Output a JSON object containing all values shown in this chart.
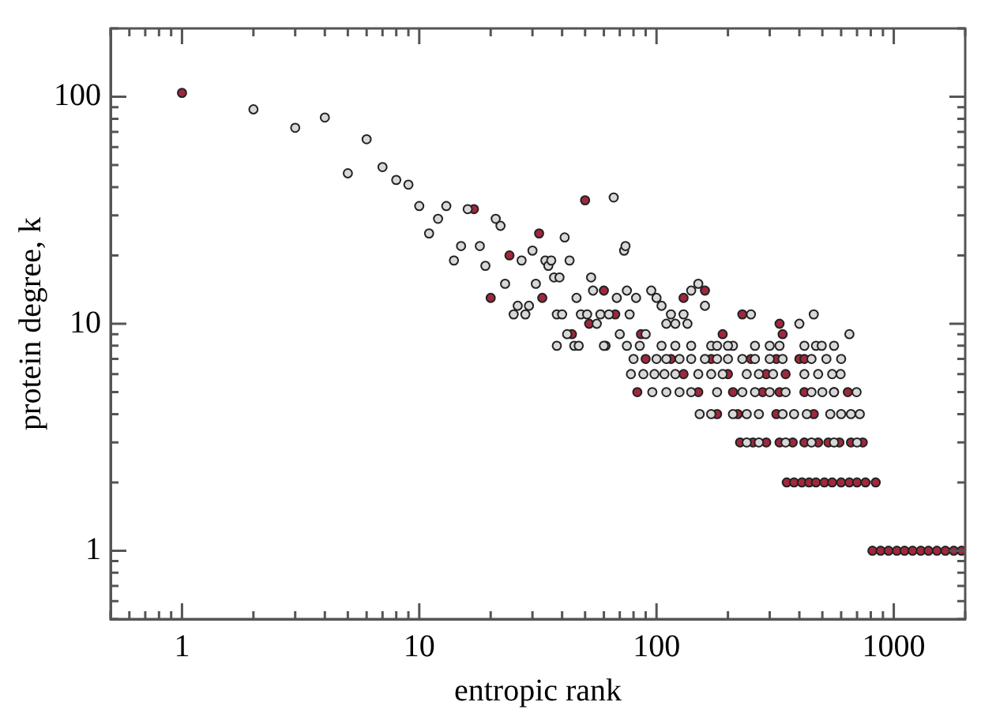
{
  "chart_data": {
    "type": "scatter",
    "xlabel": "entropic rank",
    "ylabel": "protein degree, k",
    "log": "xy",
    "grid": false,
    "legend": false,
    "marker": "circle",
    "xlim": [
      0.5,
      2000
    ],
    "ylim": [
      0.5,
      200
    ],
    "xticks": [
      {
        "value": 0.5,
        "label": null
      },
      {
        "value": 0.6,
        "label": null
      },
      {
        "value": 0.7,
        "label": null
      },
      {
        "value": 0.8,
        "label": null
      },
      {
        "value": 0.9,
        "label": null
      },
      1,
      {
        "value": 2,
        "label": null
      },
      {
        "value": 3,
        "label": null
      },
      {
        "value": 4,
        "label": null
      },
      {
        "value": 5,
        "label": null
      },
      {
        "value": 6,
        "label": null
      },
      {
        "value": 7,
        "label": null
      },
      {
        "value": 8,
        "label": null
      },
      {
        "value": 9,
        "label": null
      },
      10,
      {
        "value": 20,
        "label": null
      },
      {
        "value": 30,
        "label": null
      },
      {
        "value": 40,
        "label": null
      },
      {
        "value": 50,
        "label": null
      },
      {
        "value": 60,
        "label": null
      },
      {
        "value": 70,
        "label": null
      },
      {
        "value": 80,
        "label": null
      },
      {
        "value": 90,
        "label": null
      },
      100,
      {
        "value": 200,
        "label": null
      },
      {
        "value": 300,
        "label": null
      },
      {
        "value": 400,
        "label": null
      },
      {
        "value": 500,
        "label": null
      },
      {
        "value": 600,
        "label": null
      },
      {
        "value": 700,
        "label": null
      },
      {
        "value": 800,
        "label": null
      },
      {
        "value": 900,
        "label": null
      },
      1000,
      {
        "value": 2000,
        "label": null
      }
    ],
    "yticks": [
      {
        "value": 0.5,
        "label": null
      },
      {
        "value": 0.6,
        "label": null
      },
      {
        "value": 0.7,
        "label": null
      },
      {
        "value": 0.8,
        "label": null
      },
      {
        "value": 0.9,
        "label": null
      },
      1,
      {
        "value": 2,
        "label": null
      },
      {
        "value": 3,
        "label": null
      },
      {
        "value": 4,
        "label": null
      },
      {
        "value": 5,
        "label": null
      },
      {
        "value": 6,
        "label": null
      },
      {
        "value": 7,
        "label": null
      },
      {
        "value": 8,
        "label": null
      },
      {
        "value": 9,
        "label": null
      },
      10,
      {
        "value": 20,
        "label": null
      },
      {
        "value": 30,
        "label": null
      },
      {
        "value": 40,
        "label": null
      },
      {
        "value": 50,
        "label": null
      },
      {
        "value": 60,
        "label": null
      },
      {
        "value": 70,
        "label": null
      },
      {
        "value": 80,
        "label": null
      },
      {
        "value": 90,
        "label": null
      },
      100,
      {
        "value": 200,
        "label": null
      }
    ],
    "series": [
      {
        "color": "#d8d8d8",
        "x": [
          2,
          3,
          4,
          5,
          6,
          7,
          8,
          9,
          10,
          11,
          12,
          13,
          14,
          15,
          16,
          18,
          19,
          21,
          22,
          23,
          25,
          26,
          27,
          28,
          29,
          30,
          31,
          34,
          35,
          36,
          37,
          38,
          39,
          40,
          41,
          42,
          43,
          45,
          46,
          47,
          48,
          51,
          53,
          54,
          56,
          58,
          61,
          63,
          66,
          68,
          70,
          73,
          74,
          75,
          77,
          82,
          85,
          90,
          95,
          100,
          105,
          110,
          115,
          120,
          130,
          135,
          140,
          150,
          160,
          170,
          180,
          210,
          250,
          300,
          400,
          460,
          470,
          560,
          650,
          38,
          60,
          75,
          105,
          120,
          140,
          200,
          260,
          330,
          420,
          497,
          80,
          100,
          110,
          125,
          140,
          160,
          180,
          200,
          230,
          260,
          300,
          340,
          450,
          520,
          600,
          78,
          88,
          98,
          108,
          120,
          150,
          170,
          190,
          240,
          270,
          310,
          420,
          480,
          550,
          597,
          96,
          110,
          125,
          140,
          180,
          230,
          260,
          300,
          350,
          450,
          500,
          560,
          697,
          152,
          170,
          210,
          240,
          270,
          340,
          380,
          430,
          540,
          600,
          660,
          719,
          240,
          270,
          350,
          450,
          560,
          700
        ],
        "values": [
          88,
          73,
          81,
          46,
          65,
          49,
          43,
          41,
          33,
          25,
          29,
          33,
          19,
          22,
          32,
          22,
          18,
          29,
          27,
          15,
          11,
          12,
          19,
          11,
          12,
          21,
          15,
          19,
          18,
          19,
          16,
          11,
          16,
          11,
          24,
          9,
          19,
          8,
          13,
          8,
          11,
          11,
          16,
          14,
          10,
          11,
          8,
          11,
          36,
          13,
          9,
          21,
          22,
          14,
          11,
          13,
          8,
          9,
          14,
          13,
          12,
          10,
          11,
          10,
          11,
          10,
          14,
          15,
          12,
          8,
          8,
          8,
          11,
          8,
          10,
          11,
          8,
          8,
          9,
          8,
          8,
          8,
          8,
          8,
          8,
          8,
          8,
          8,
          8,
          8,
          7,
          7,
          7,
          7,
          7,
          7,
          7,
          7,
          7,
          7,
          7,
          7,
          7,
          7,
          7,
          6,
          6,
          6,
          6,
          6,
          6,
          6,
          6,
          6,
          6,
          6,
          6,
          6,
          6,
          6,
          5,
          5,
          5,
          5,
          5,
          5,
          5,
          5,
          5,
          5,
          5,
          5,
          5,
          4,
          4,
          4,
          4,
          4,
          4,
          4,
          4,
          4,
          4,
          4,
          4,
          3,
          3,
          3,
          3,
          3,
          3
        ]
      },
      {
        "color": "#a0283c",
        "x": [
          1,
          17,
          20,
          24,
          32,
          33,
          44,
          50,
          52,
          60,
          67,
          86,
          130,
          160,
          190,
          230,
          330,
          340,
          400,
          813,
          880,
          950,
          1030,
          1110,
          1200,
          1300,
          1400,
          1520,
          1650,
          1790,
          1930,
          354,
          380,
          410,
          440,
          470,
          510,
          550,
          600,
          650,
          700,
          760,
          839,
          225,
          255,
          290,
          330,
          375,
          420,
          480,
          530,
          590,
          660,
          740,
          83,
          150,
          210,
          280,
          330,
          420,
          560,
          640,
          90,
          115,
          170,
          250,
          320,
          420,
          130,
          200,
          290,
          350,
          180,
          220,
          320,
          460
        ],
        "values": [
          104,
          32,
          13,
          20,
          25,
          13,
          9,
          35,
          10,
          14,
          11,
          9,
          13,
          14,
          9,
          11,
          10,
          9,
          7,
          1,
          1,
          1,
          1,
          1,
          1,
          1,
          1,
          1,
          1,
          1,
          1,
          2,
          2,
          2,
          2,
          2,
          2,
          2,
          2,
          2,
          2,
          2,
          2,
          3,
          3,
          3,
          3,
          3,
          3,
          3,
          3,
          3,
          3,
          3,
          5,
          5,
          5,
          5,
          5,
          5,
          5,
          5,
          7,
          7,
          7,
          7,
          7,
          7,
          6,
          6,
          6,
          6,
          4,
          4,
          4,
          4
        ]
      }
    ]
  }
}
